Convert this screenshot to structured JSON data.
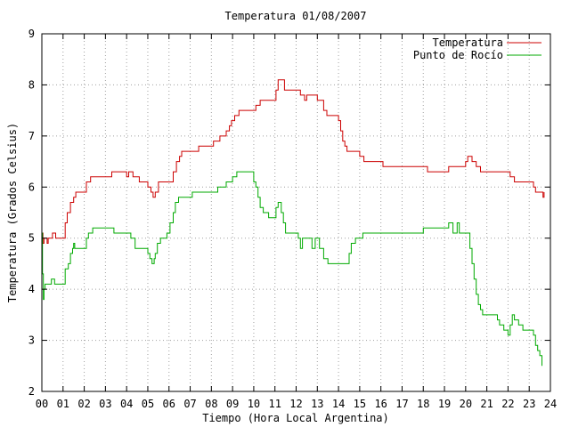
{
  "chart_data": {
    "type": "line",
    "title": "Temperatura 01/08/2007",
    "xlabel": "Tiempo (Hora Local Argentina)",
    "ylabel": "Temperatura (Grados Celsius)",
    "xlim": [
      0,
      24
    ],
    "ylim": [
      2,
      9
    ],
    "grid": true,
    "legend_position": "top-right",
    "x_ticks": [
      "00",
      "01",
      "02",
      "03",
      "04",
      "05",
      "06",
      "07",
      "08",
      "09",
      "10",
      "11",
      "12",
      "13",
      "14",
      "15",
      "16",
      "17",
      "18",
      "19",
      "20",
      "21",
      "22",
      "23",
      "24"
    ],
    "y_ticks": [
      "2",
      "3",
      "4",
      "5",
      "6",
      "7",
      "8",
      "9"
    ],
    "series": [
      {
        "name": "Temperatura",
        "color": "#cc0000",
        "points": [
          [
            0.0,
            5.1
          ],
          [
            0.05,
            4.9
          ],
          [
            0.1,
            5.0
          ],
          [
            0.2,
            5.0
          ],
          [
            0.25,
            4.9
          ],
          [
            0.3,
            5.0
          ],
          [
            0.45,
            5.0
          ],
          [
            0.5,
            5.1
          ],
          [
            0.6,
            5.1
          ],
          [
            0.65,
            5.0
          ],
          [
            1.0,
            5.0
          ],
          [
            1.1,
            5.3
          ],
          [
            1.2,
            5.5
          ],
          [
            1.35,
            5.7
          ],
          [
            1.5,
            5.8
          ],
          [
            1.6,
            5.9
          ],
          [
            2.0,
            5.9
          ],
          [
            2.1,
            6.1
          ],
          [
            2.3,
            6.2
          ],
          [
            3.0,
            6.2
          ],
          [
            3.3,
            6.3
          ],
          [
            3.9,
            6.3
          ],
          [
            4.0,
            6.2
          ],
          [
            4.1,
            6.3
          ],
          [
            4.3,
            6.2
          ],
          [
            4.5,
            6.2
          ],
          [
            4.6,
            6.1
          ],
          [
            4.9,
            6.1
          ],
          [
            5.0,
            6.0
          ],
          [
            5.15,
            5.9
          ],
          [
            5.25,
            5.8
          ],
          [
            5.35,
            5.9
          ],
          [
            5.5,
            6.1
          ],
          [
            6.1,
            6.1
          ],
          [
            6.2,
            6.3
          ],
          [
            6.35,
            6.5
          ],
          [
            6.5,
            6.6
          ],
          [
            6.6,
            6.7
          ],
          [
            7.3,
            6.7
          ],
          [
            7.4,
            6.8
          ],
          [
            8.0,
            6.8
          ],
          [
            8.1,
            6.9
          ],
          [
            8.3,
            6.9
          ],
          [
            8.4,
            7.0
          ],
          [
            8.6,
            7.0
          ],
          [
            8.7,
            7.1
          ],
          [
            8.85,
            7.2
          ],
          [
            8.95,
            7.3
          ],
          [
            9.1,
            7.4
          ],
          [
            9.3,
            7.5
          ],
          [
            9.9,
            7.5
          ],
          [
            10.1,
            7.6
          ],
          [
            10.3,
            7.7
          ],
          [
            11.0,
            7.7
          ],
          [
            11.05,
            7.9
          ],
          [
            11.15,
            8.1
          ],
          [
            11.4,
            8.1
          ],
          [
            11.45,
            7.9
          ],
          [
            12.0,
            7.9
          ],
          [
            12.2,
            7.8
          ],
          [
            12.4,
            7.7
          ],
          [
            12.5,
            7.8
          ],
          [
            12.9,
            7.8
          ],
          [
            13.0,
            7.7
          ],
          [
            13.3,
            7.5
          ],
          [
            13.45,
            7.4
          ],
          [
            13.9,
            7.4
          ],
          [
            14.0,
            7.3
          ],
          [
            14.1,
            7.1
          ],
          [
            14.2,
            6.9
          ],
          [
            14.3,
            6.8
          ],
          [
            14.4,
            6.7
          ],
          [
            14.9,
            6.7
          ],
          [
            15.0,
            6.6
          ],
          [
            15.2,
            6.5
          ],
          [
            16.0,
            6.5
          ],
          [
            16.1,
            6.4
          ],
          [
            18.0,
            6.4
          ],
          [
            18.2,
            6.3
          ],
          [
            19.1,
            6.3
          ],
          [
            19.2,
            6.4
          ],
          [
            19.9,
            6.4
          ],
          [
            20.0,
            6.5
          ],
          [
            20.1,
            6.6
          ],
          [
            20.3,
            6.5
          ],
          [
            20.5,
            6.4
          ],
          [
            20.7,
            6.3
          ],
          [
            22.0,
            6.3
          ],
          [
            22.1,
            6.2
          ],
          [
            22.3,
            6.1
          ],
          [
            23.1,
            6.1
          ],
          [
            23.2,
            6.0
          ],
          [
            23.3,
            5.9
          ],
          [
            23.65,
            5.8
          ],
          [
            23.7,
            5.9
          ]
        ]
      },
      {
        "name": "Punto de Rocío",
        "color": "#00aa00",
        "points": [
          [
            0.0,
            5.1
          ],
          [
            0.03,
            4.3
          ],
          [
            0.07,
            3.8
          ],
          [
            0.1,
            4.0
          ],
          [
            0.15,
            4.1
          ],
          [
            0.4,
            4.1
          ],
          [
            0.45,
            4.2
          ],
          [
            0.55,
            4.2
          ],
          [
            0.6,
            4.1
          ],
          [
            1.0,
            4.1
          ],
          [
            1.1,
            4.4
          ],
          [
            1.25,
            4.5
          ],
          [
            1.35,
            4.7
          ],
          [
            1.45,
            4.8
          ],
          [
            1.5,
            4.9
          ],
          [
            1.55,
            4.8
          ],
          [
            2.0,
            4.8
          ],
          [
            2.1,
            5.0
          ],
          [
            2.2,
            5.1
          ],
          [
            2.4,
            5.2
          ],
          [
            3.3,
            5.2
          ],
          [
            3.4,
            5.1
          ],
          [
            4.1,
            5.1
          ],
          [
            4.2,
            5.0
          ],
          [
            4.4,
            4.8
          ],
          [
            4.6,
            4.8
          ],
          [
            4.9,
            4.8
          ],
          [
            5.0,
            4.7
          ],
          [
            5.1,
            4.6
          ],
          [
            5.2,
            4.5
          ],
          [
            5.3,
            4.6
          ],
          [
            5.35,
            4.7
          ],
          [
            5.45,
            4.9
          ],
          [
            5.6,
            5.0
          ],
          [
            5.9,
            5.1
          ],
          [
            6.05,
            5.3
          ],
          [
            6.2,
            5.5
          ],
          [
            6.3,
            5.7
          ],
          [
            6.45,
            5.8
          ],
          [
            7.0,
            5.8
          ],
          [
            7.1,
            5.9
          ],
          [
            8.2,
            5.9
          ],
          [
            8.3,
            6.0
          ],
          [
            8.6,
            6.0
          ],
          [
            8.7,
            6.1
          ],
          [
            8.9,
            6.1
          ],
          [
            9.0,
            6.2
          ],
          [
            9.2,
            6.3
          ],
          [
            9.9,
            6.3
          ],
          [
            10.0,
            6.1
          ],
          [
            10.1,
            6.0
          ],
          [
            10.2,
            5.8
          ],
          [
            10.3,
            5.6
          ],
          [
            10.45,
            5.5
          ],
          [
            10.6,
            5.5
          ],
          [
            10.7,
            5.4
          ],
          [
            11.0,
            5.4
          ],
          [
            11.05,
            5.6
          ],
          [
            11.15,
            5.7
          ],
          [
            11.3,
            5.5
          ],
          [
            11.4,
            5.3
          ],
          [
            11.5,
            5.1
          ],
          [
            12.0,
            5.1
          ],
          [
            12.1,
            5.0
          ],
          [
            12.2,
            4.8
          ],
          [
            12.3,
            5.0
          ],
          [
            12.5,
            5.0
          ],
          [
            12.6,
            5.0
          ],
          [
            12.75,
            4.8
          ],
          [
            12.9,
            5.0
          ],
          [
            13.0,
            5.0
          ],
          [
            13.1,
            4.8
          ],
          [
            13.3,
            4.6
          ],
          [
            13.5,
            4.5
          ],
          [
            14.4,
            4.5
          ],
          [
            14.5,
            4.7
          ],
          [
            14.6,
            4.9
          ],
          [
            14.8,
            5.0
          ],
          [
            15.05,
            5.0
          ],
          [
            15.15,
            5.1
          ],
          [
            15.3,
            5.1
          ],
          [
            15.5,
            5.1
          ],
          [
            17.5,
            5.1
          ],
          [
            18.0,
            5.2
          ],
          [
            19.1,
            5.2
          ],
          [
            19.2,
            5.3
          ],
          [
            19.4,
            5.1
          ],
          [
            19.6,
            5.3
          ],
          [
            19.7,
            5.1
          ],
          [
            20.1,
            5.1
          ],
          [
            20.2,
            4.8
          ],
          [
            20.3,
            4.5
          ],
          [
            20.4,
            4.2
          ],
          [
            20.5,
            3.9
          ],
          [
            20.6,
            3.7
          ],
          [
            20.7,
            3.6
          ],
          [
            20.8,
            3.5
          ],
          [
            21.3,
            3.5
          ],
          [
            21.5,
            3.4
          ],
          [
            21.6,
            3.3
          ],
          [
            21.8,
            3.2
          ],
          [
            22.0,
            3.1
          ],
          [
            22.1,
            3.3
          ],
          [
            22.2,
            3.5
          ],
          [
            22.3,
            3.4
          ],
          [
            22.5,
            3.3
          ],
          [
            22.7,
            3.2
          ],
          [
            23.1,
            3.2
          ],
          [
            23.2,
            3.1
          ],
          [
            23.3,
            2.9
          ],
          [
            23.4,
            2.8
          ],
          [
            23.5,
            2.7
          ],
          [
            23.6,
            2.5
          ]
        ]
      }
    ]
  }
}
